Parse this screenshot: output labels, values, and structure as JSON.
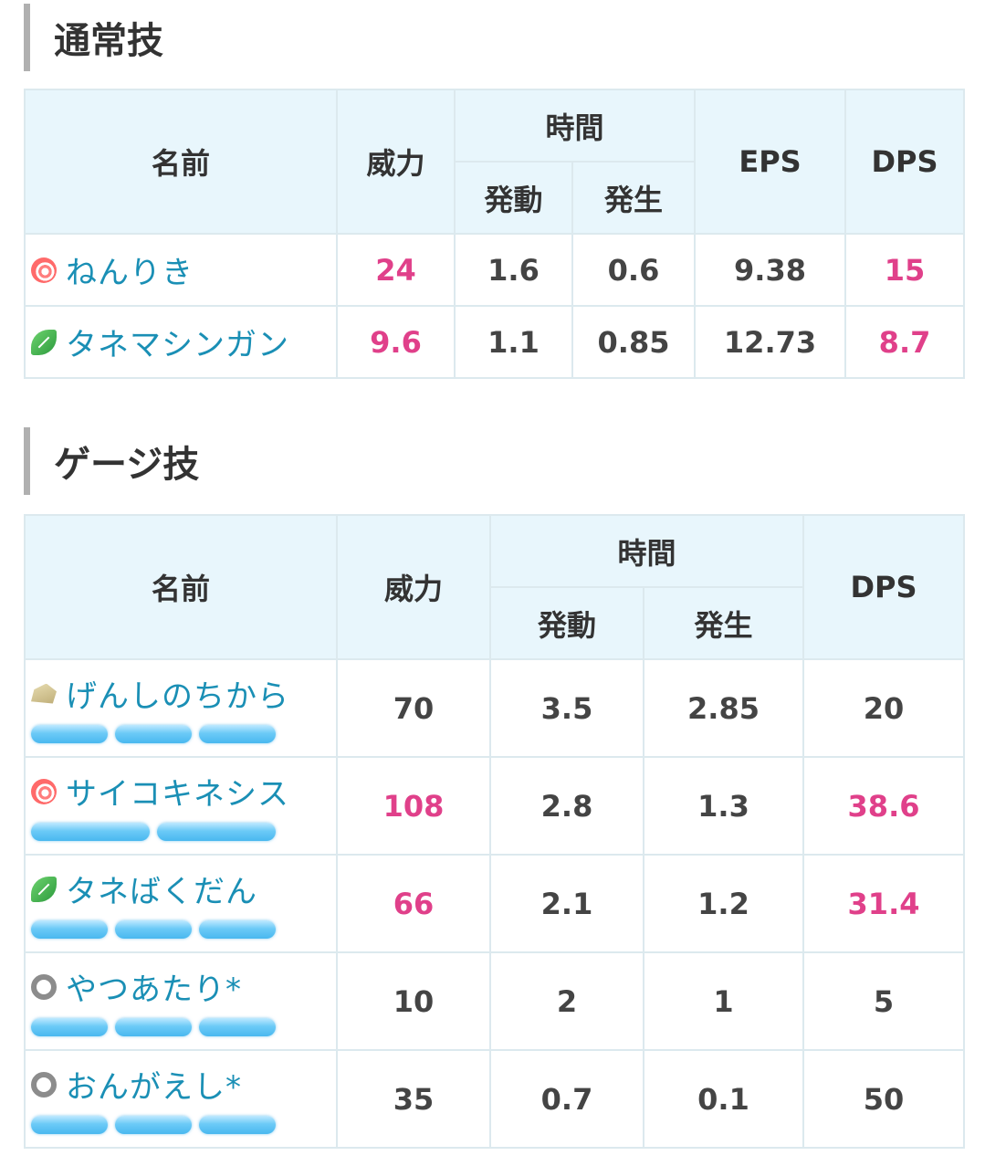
{
  "normal_section": {
    "title": "通常技",
    "headers": {
      "name": "名前",
      "power": "威力",
      "time": "時間",
      "activation": "発動",
      "occurrence": "発生",
      "eps": "EPS",
      "dps": "DPS"
    },
    "rows": [
      {
        "icon": "psychic-type-icon",
        "name": "ねんりき",
        "power": "24",
        "activation": "1.6",
        "occurrence": "0.6",
        "eps": "9.38",
        "dps": "15"
      },
      {
        "icon": "grass-type-icon",
        "name": "タネマシンガン",
        "power": "9.6",
        "activation": "1.1",
        "occurrence": "0.85",
        "eps": "12.73",
        "dps": "8.7"
      }
    ]
  },
  "charged_section": {
    "title": "ゲージ技",
    "headers": {
      "name": "名前",
      "power": "威力",
      "time": "時間",
      "activation": "発動",
      "occurrence": "発生",
      "dps": "DPS"
    },
    "rows": [
      {
        "icon": "rock-type-icon",
        "name": "げんしのちから",
        "energy_bars": 3,
        "power": "70",
        "activation": "3.5",
        "occurrence": "2.85",
        "dps": "20"
      },
      {
        "icon": "psychic-type-icon",
        "name": "サイコキネシス",
        "energy_bars": 2,
        "power": "108",
        "activation": "2.8",
        "occurrence": "1.3",
        "dps": "38.6"
      },
      {
        "icon": "grass-type-icon",
        "name": "タネばくだん",
        "energy_bars": 3,
        "power": "66",
        "activation": "2.1",
        "occurrence": "1.2",
        "dps": "31.4"
      },
      {
        "icon": "normal-type-icon",
        "name": "やつあたり*",
        "energy_bars": 3,
        "power": "10",
        "activation": "2",
        "occurrence": "1",
        "dps": "5"
      },
      {
        "icon": "normal-type-icon",
        "name": "おんがえし*",
        "energy_bars": 3,
        "power": "35",
        "activation": "0.7",
        "occurrence": "0.1",
        "dps": "50"
      }
    ]
  },
  "colors": {
    "highlight": "#e0408a",
    "move_name": "#1a8fb5",
    "header_bg": "#e8f6fc",
    "border": "#dce9ee"
  }
}
